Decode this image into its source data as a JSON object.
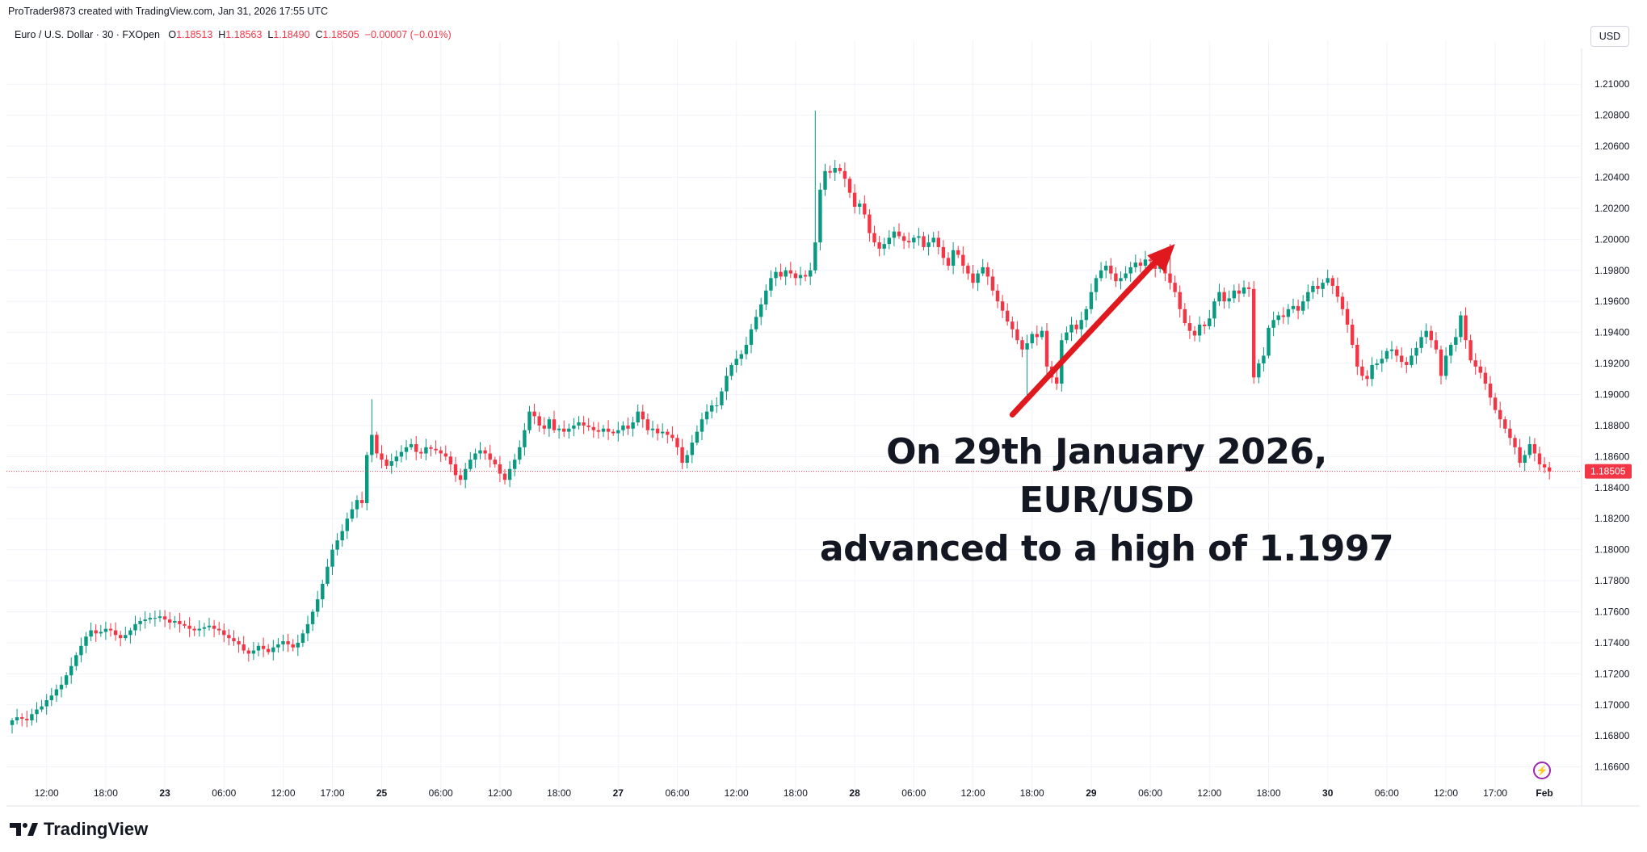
{
  "header": {
    "created_by": "ProTrader9873 created with TradingView.com, Jan 31, 2026 17:55 UTC"
  },
  "symbol": {
    "title": "Euro / U.S. Dollar · 30 · FXOpen",
    "o_label": "O",
    "o_value": "1.18513",
    "h_label": "H",
    "h_value": "1.18563",
    "l_label": "L",
    "l_value": "1.18490",
    "c_label": "C",
    "c_value": "1.18505",
    "change": "−0.00007 (−0.01%)"
  },
  "currency": "USD",
  "annotation": {
    "line1": "On 29th January 2026, EUR/USD",
    "line2": "advanced to a high of 1.1997"
  },
  "logo_text": "TradingView",
  "colors": {
    "up": "#089981",
    "down": "#f23645",
    "arrow": "#e0191e",
    "grid": "#f0f3fa",
    "price_line": "#f23645"
  },
  "icons": [
    "tradingview-logo-icon",
    "bolt-icon"
  ],
  "chart_data": {
    "type": "candlestick",
    "title": "Euro / U.S. Dollar · 30 · FXOpen",
    "xlabel": "",
    "ylabel": "",
    "ylim": [
      1.1652,
      1.2123
    ],
    "grid": true,
    "last_price": 1.18505,
    "last_price_label": "1.18505",
    "y_ticks": [
      "1.21000",
      "1.20800",
      "1.20600",
      "1.20400",
      "1.20200",
      "1.20000",
      "1.19800",
      "1.19600",
      "1.19400",
      "1.19200",
      "1.19000",
      "1.18800",
      "1.18600",
      "1.18400",
      "1.18200",
      "1.18000",
      "1.17800",
      "1.17600",
      "1.17400",
      "1.17200",
      "1.17000",
      "1.16800",
      "1.16600"
    ],
    "x_ticks": [
      {
        "label": "12:00",
        "bar": 7
      },
      {
        "label": "18:00",
        "bar": 19
      },
      {
        "label": "23",
        "bar": 31
      },
      {
        "label": "06:00",
        "bar": 43
      },
      {
        "label": "12:00",
        "bar": 55
      },
      {
        "label": "17:00",
        "bar": 65
      },
      {
        "label": "25",
        "bar": 75
      },
      {
        "label": "06:00",
        "bar": 87
      },
      {
        "label": "12:00",
        "bar": 99
      },
      {
        "label": "18:00",
        "bar": 111
      },
      {
        "label": "27",
        "bar": 123
      },
      {
        "label": "06:00",
        "bar": 135
      },
      {
        "label": "12:00",
        "bar": 147
      },
      {
        "label": "18:00",
        "bar": 159
      },
      {
        "label": "28",
        "bar": 171
      },
      {
        "label": "06:00",
        "bar": 183
      },
      {
        "label": "12:00",
        "bar": 195
      },
      {
        "label": "18:00",
        "bar": 207
      },
      {
        "label": "29",
        "bar": 219
      },
      {
        "label": "06:00",
        "bar": 231
      },
      {
        "label": "12:00",
        "bar": 243
      },
      {
        "label": "18:00",
        "bar": 255
      },
      {
        "label": "30",
        "bar": 267
      },
      {
        "label": "06:00",
        "bar": 279
      },
      {
        "label": "12:00",
        "bar": 291
      },
      {
        "label": "17:00",
        "bar": 301
      },
      {
        "label": "Feb",
        "bar": 311
      }
    ],
    "arrow": {
      "from_bar": 203,
      "from_price": 1.1887,
      "to_bar": 236,
      "to_price": 1.1997
    },
    "closes": [
      1.169,
      1.1692,
      1.1691,
      1.169,
      1.1694,
      1.1697,
      1.1699,
      1.1703,
      1.1706,
      1.171,
      1.1713,
      1.1719,
      1.1725,
      1.1732,
      1.1738,
      1.1744,
      1.1748,
      1.1746,
      1.1747,
      1.1749,
      1.1748,
      1.1745,
      1.1743,
      1.1745,
      1.1748,
      1.1752,
      1.1754,
      1.1755,
      1.1756,
      1.1756,
      1.1757,
      1.1755,
      1.1753,
      1.1754,
      1.1752,
      1.1751,
      1.1749,
      1.1748,
      1.1749,
      1.175,
      1.1751,
      1.1749,
      1.1748,
      1.1745,
      1.1743,
      1.1741,
      1.1739,
      1.1735,
      1.1733,
      1.1735,
      1.1738,
      1.1736,
      1.1734,
      1.1737,
      1.1739,
      1.1741,
      1.1739,
      1.1737,
      1.174,
      1.1746,
      1.1752,
      1.176,
      1.1768,
      1.1778,
      1.1789,
      1.18,
      1.1806,
      1.1812,
      1.182,
      1.1826,
      1.1832,
      1.183,
      1.1861,
      1.1874,
      1.1862,
      1.1858,
      1.1854,
      1.1857,
      1.186,
      1.1863,
      1.1866,
      1.1868,
      1.1863,
      1.1862,
      1.1866,
      1.1865,
      1.1864,
      1.1862,
      1.186,
      1.1855,
      1.1848,
      1.1845,
      1.1852,
      1.1858,
      1.1862,
      1.1864,
      1.1862,
      1.1858,
      1.1855,
      1.1849,
      1.1845,
      1.1852,
      1.1858,
      1.1866,
      1.1877,
      1.1889,
      1.1886,
      1.188,
      1.1878,
      1.1884,
      1.1877,
      1.1878,
      1.1876,
      1.1878,
      1.188,
      1.1882,
      1.188,
      1.1879,
      1.1877,
      1.1876,
      1.1878,
      1.1876,
      1.1875,
      1.1877,
      1.188,
      1.1878,
      1.1882,
      1.1889,
      1.1884,
      1.1877,
      1.1878,
      1.1875,
      1.1876,
      1.1874,
      1.1872,
      1.1866,
      1.1856,
      1.1861,
      1.1869,
      1.1876,
      1.1884,
      1.1889,
      1.1893,
      1.1893,
      1.1902,
      1.1912,
      1.1919,
      1.1923,
      1.1926,
      1.1932,
      1.1942,
      1.195,
      1.1958,
      1.1967,
      1.1975,
      1.1979,
      1.1976,
      1.198,
      1.1978,
      1.1975,
      1.1977,
      1.1976,
      1.198,
      1.1998,
      1.2032,
      1.2044,
      1.2043,
      1.2046,
      1.2044,
      1.2039,
      1.203,
      1.2021,
      1.2023,
      1.2016,
      1.2004,
      1.1998,
      1.1994,
      1.1997,
      1.2001,
      1.2005,
      1.2002,
      1.1999,
      1.1998,
      1.2001,
      1.2002,
      1.1995,
      1.1998,
      1.2001,
      1.1995,
      1.1988,
      1.1983,
      1.1993,
      1.199,
      1.1983,
      1.1978,
      1.1972,
      1.1978,
      1.1982,
      1.1976,
      1.1967,
      1.196,
      1.1954,
      1.1947,
      1.1942,
      1.1935,
      1.1929,
      1.1933,
      1.1939,
      1.1937,
      1.1941,
      1.1918,
      1.1911,
      1.1907,
      1.1935,
      1.194,
      1.1945,
      1.1942,
      1.1948,
      1.1955,
      1.1966,
      1.1975,
      1.198,
      1.1983,
      1.1978,
      1.1973,
      1.1975,
      1.1978,
      1.1982,
      1.1985,
      1.1983,
      1.1987,
      1.1986,
      1.1981,
      1.1983,
      1.1978,
      1.1972,
      1.1966,
      1.1955,
      1.1946,
      1.1941,
      1.1938,
      1.1945,
      1.1944,
      1.1949,
      1.196,
      1.1966,
      1.196,
      1.1962,
      1.1967,
      1.1965,
      1.1969,
      1.1968,
      1.1911,
      1.192,
      1.1925,
      1.1943,
      1.1948,
      1.1951,
      1.195,
      1.1955,
      1.1957,
      1.1954,
      1.196,
      1.1966,
      1.197,
      1.1968,
      1.1972,
      1.1975,
      1.197,
      1.1963,
      1.1955,
      1.1945,
      1.1932,
      1.1918,
      1.1912,
      1.191,
      1.1919,
      1.192,
      1.1923,
      1.1928,
      1.1929,
      1.1925,
      1.1921,
      1.1919,
      1.1925,
      1.193,
      1.1937,
      1.1941,
      1.1935,
      1.1929,
      1.1912,
      1.1925,
      1.1932,
      1.1937,
      1.1951,
      1.1935,
      1.1922,
      1.1918,
      1.1914,
      1.1907,
      1.1898,
      1.189,
      1.1884,
      1.1878,
      1.1872,
      1.1866,
      1.1856,
      1.1861,
      1.1868,
      1.1862,
      1.1855,
      1.1853,
      1.18505
    ]
  }
}
